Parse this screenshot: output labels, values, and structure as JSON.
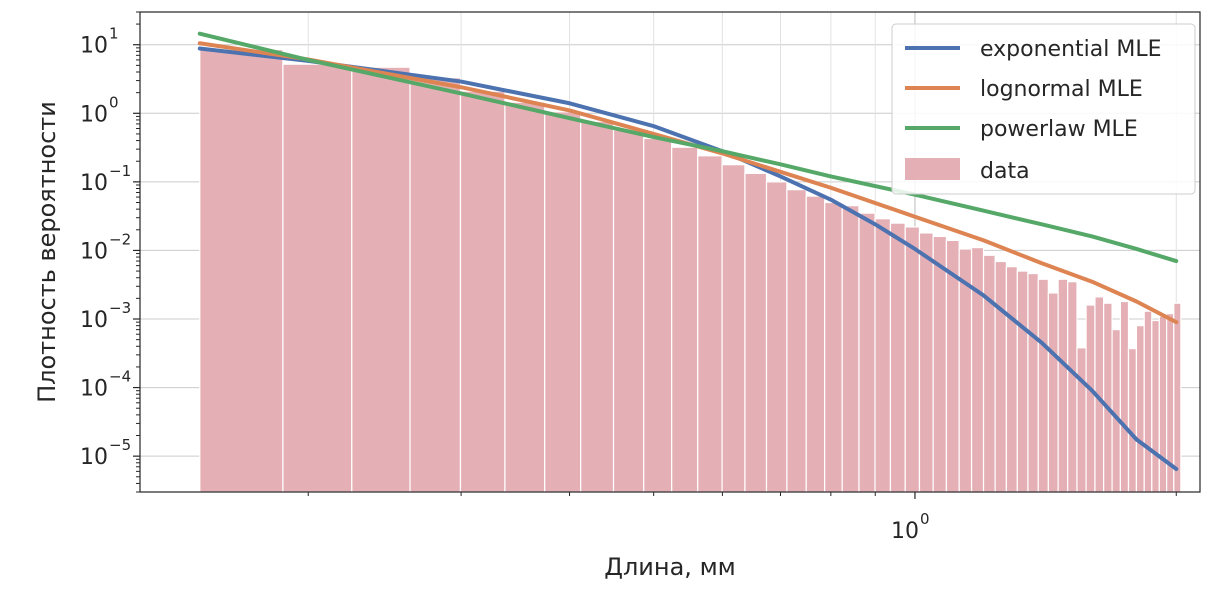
{
  "chart_data": {
    "type": "bar",
    "xlabel": "Длина, мм",
    "ylabel": "Плотность вероятности",
    "xscale": "log",
    "yscale": "log",
    "xlim": [
      0.128,
      2.13
    ],
    "ylim": [
      3e-06,
      30
    ],
    "grid": true,
    "legend_position": "top-right",
    "x_ticks": [
      {
        "base": "10",
        "exp": "0",
        "value": 1
      }
    ],
    "y_ticks": [
      {
        "base": "10",
        "exp": "1",
        "value": 10
      },
      {
        "base": "10",
        "exp": "0",
        "value": 1
      },
      {
        "base": "10",
        "exp": "−1",
        "value": 0.1
      },
      {
        "base": "10",
        "exp": "−2",
        "value": 0.01
      },
      {
        "base": "10",
        "exp": "−3",
        "value": 0.001
      },
      {
        "base": "10",
        "exp": "−4",
        "value": 0.0001
      },
      {
        "base": "10",
        "exp": "−5",
        "value": 1e-05
      }
    ],
    "histogram": {
      "name": "data",
      "color": "#e5b0b5",
      "edges": [
        0.15,
        0.187,
        0.2245,
        0.262,
        0.2995,
        0.337,
        0.3745,
        0.412,
        0.4495,
        0.487,
        0.5245,
        0.562,
        0.5995,
        0.637,
        0.6745,
        0.712,
        0.7495,
        0.787,
        0.8245,
        0.862,
        0.8995,
        0.937,
        0.9745,
        1.012,
        1.0495,
        1.087,
        1.1245,
        1.162,
        1.1995,
        1.237,
        1.2745,
        1.312,
        1.3495,
        1.387,
        1.4245,
        1.462,
        1.4995,
        1.537,
        1.5745,
        1.612,
        1.6495,
        1.687,
        1.7245,
        1.762,
        1.7995,
        1.837,
        1.8745,
        1.912,
        1.9495,
        1.987,
        2.0245
      ],
      "values": [
        8.5,
        5.2,
        4.7,
        3.3,
        2.1,
        1.45,
        1.05,
        0.76,
        0.57,
        0.43,
        0.32,
        0.24,
        0.178,
        0.133,
        0.1,
        0.077,
        0.062,
        0.05,
        0.045,
        0.035,
        0.029,
        0.025,
        0.022,
        0.018,
        0.016,
        0.014,
        0.0105,
        0.011,
        0.0085,
        0.0069,
        0.0058,
        0.005,
        0.0046,
        0.0038,
        0.0024,
        0.0038,
        0.0035,
        0.00038,
        0.0016,
        0.0021,
        0.0017,
        0.0007,
        0.0018,
        0.00037,
        0.0008,
        0.0013,
        0.00095,
        0.0011,
        0.0012,
        0.0017
      ]
    },
    "series": [
      {
        "name": "exponential MLE",
        "color": "#4c72b0",
        "x": [
          0.15,
          0.2,
          0.3,
          0.4,
          0.5,
          0.6,
          0.7,
          0.8,
          0.9,
          1.0,
          1.2,
          1.4,
          1.6,
          1.8,
          2.0
        ],
        "y": [
          8.8,
          5.8,
          2.9,
          1.4,
          0.65,
          0.28,
          0.12,
          0.055,
          0.024,
          0.0105,
          0.0022,
          0.00045,
          9e-05,
          1.75e-05,
          6.5e-06
        ]
      },
      {
        "name": "lognormal MLE",
        "color": "#dd8452",
        "x": [
          0.15,
          0.2,
          0.3,
          0.4,
          0.5,
          0.6,
          0.7,
          0.8,
          1.0,
          1.2,
          1.4,
          1.6,
          1.8,
          2.0
        ],
        "y": [
          10.5,
          6.1,
          2.4,
          1.1,
          0.5,
          0.26,
          0.14,
          0.082,
          0.031,
          0.014,
          0.0065,
          0.0035,
          0.0018,
          0.0009
        ]
      },
      {
        "name": "powerlaw MLE",
        "color": "#55a868",
        "x": [
          0.15,
          0.2,
          0.3,
          0.4,
          0.5,
          0.6,
          0.7,
          0.8,
          1.0,
          1.2,
          1.4,
          1.6,
          1.8,
          2.0
        ],
        "y": [
          14.5,
          6.0,
          1.95,
          0.85,
          0.45,
          0.28,
          0.18,
          0.12,
          0.065,
          0.038,
          0.024,
          0.016,
          0.0105,
          0.007
        ]
      }
    ]
  }
}
